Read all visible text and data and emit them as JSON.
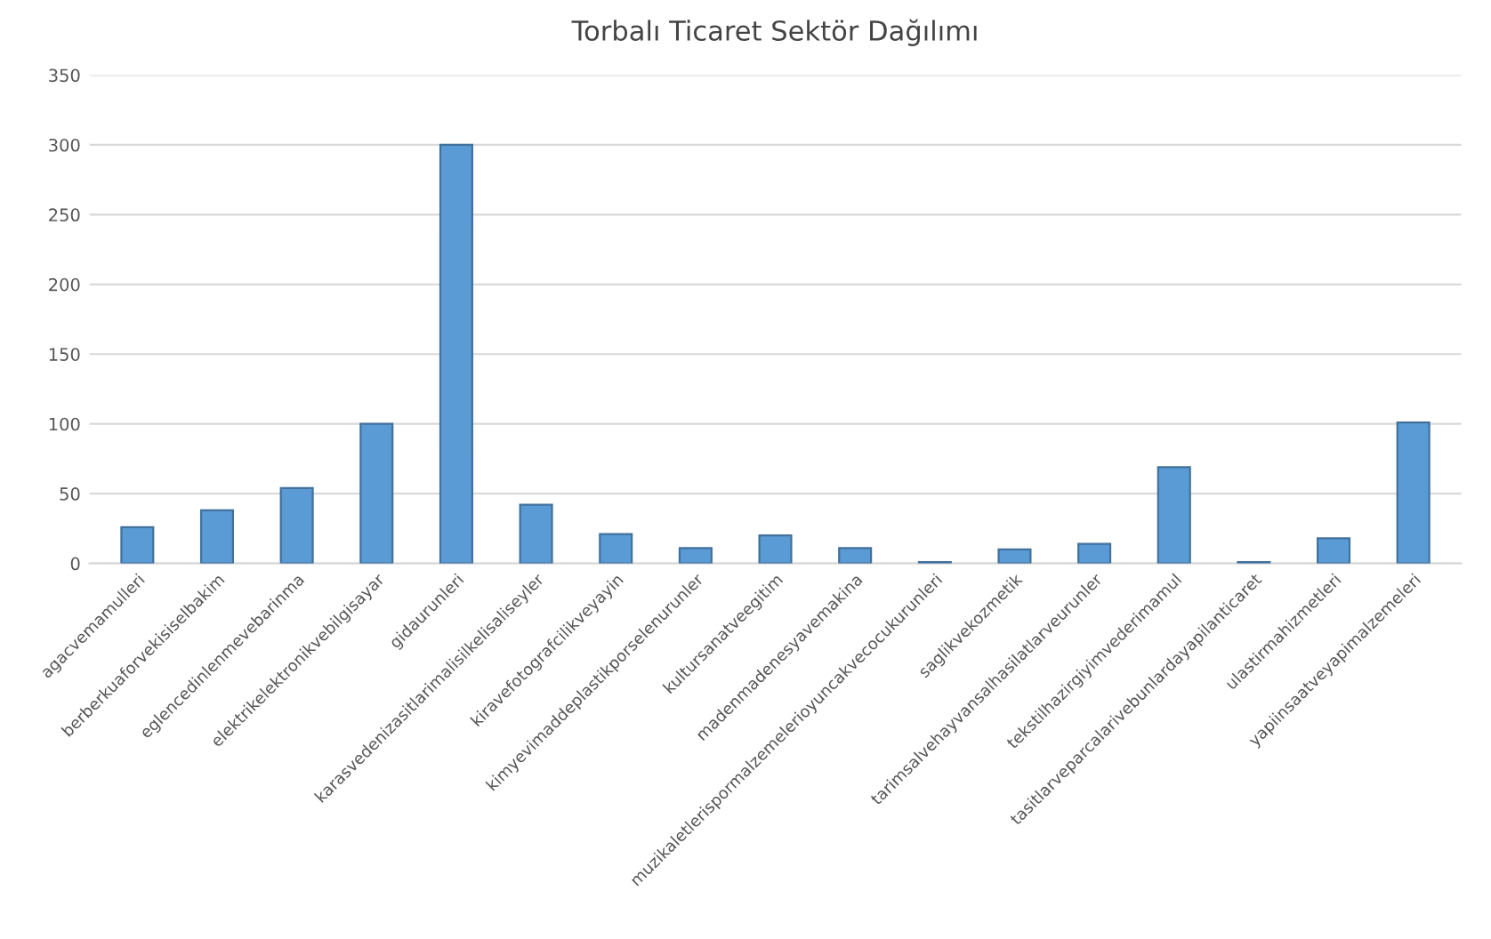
{
  "chart_data": {
    "type": "bar",
    "title": "Torbalı Ticaret Sektör Dağılımı",
    "categories": [
      "agacvemamulleri",
      "berberkuaforvekisiselbakim",
      "eglencedinlenmevebarinma",
      "elektrikelektronikvebilgisayar",
      "gidaurunleri",
      "karasvedenizasitlarimalisilkelisaliseyler",
      "kiravefotografcilikveyayin",
      "kimyevimaddeplastikporselenurunler",
      "kultursanatveegitim",
      "madenmadenesyavemakina",
      "muzikaletlerispormalzemelerioyuncakvecocukurunleri",
      "saglikvekozmetik",
      "tarimsalvehayvansalhasilatlarveurunler",
      "tekstilhazirgiyimvederimamul",
      "tasitlarveparcalarivebunlardayapilanticaret",
      "ulastirmahizmetleri",
      "yapiinsaatveyapimalzemeleri"
    ],
    "values": [
      26,
      38,
      54,
      100,
      300,
      42,
      21,
      11,
      20,
      11,
      1,
      10,
      14,
      69,
      1,
      18,
      101
    ],
    "color": "#5b9bd5",
    "ylim": [
      0,
      350
    ],
    "yticks": [
      0,
      50,
      100,
      150,
      200,
      250,
      300,
      350
    ],
    "grid": "y"
  }
}
